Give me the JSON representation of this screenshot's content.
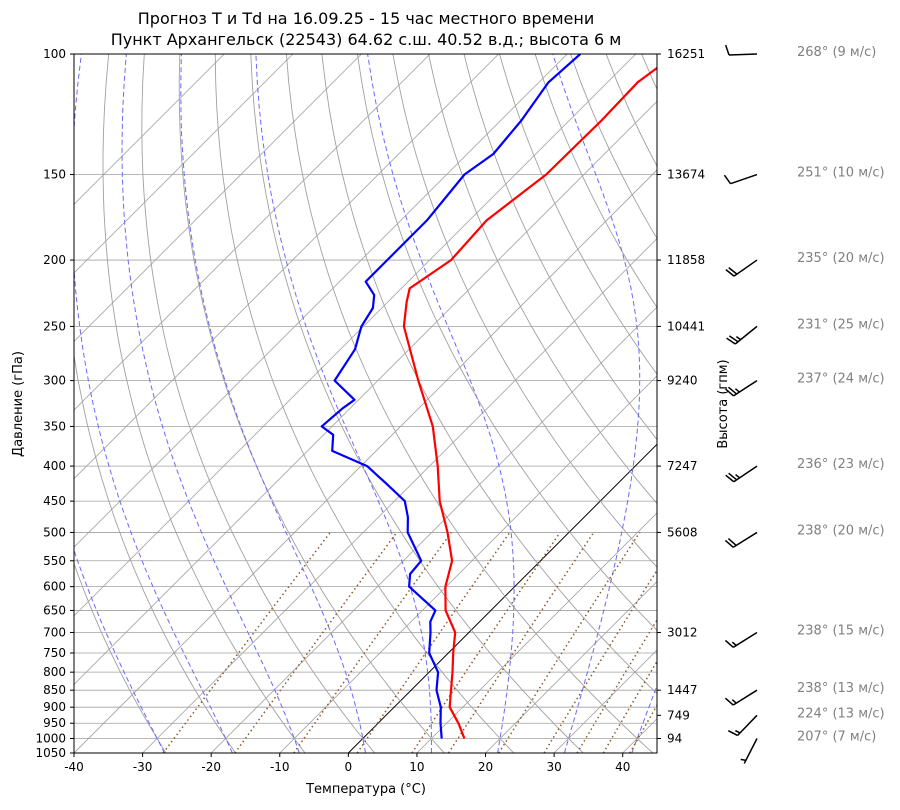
{
  "chart_data": {
    "type": "line",
    "subtype": "skew-t log-p",
    "title": [
      "Прогноз T и Td на 16.09.25 - 15 час местного времени",
      "Пункт Архангельск (22543) 64.62 с.ш. 40.52 в.д.; высота 6 м"
    ],
    "xlabel": "Температура (°C)",
    "ylabel": "Давление (гПа)",
    "ylabel_right": "Высота (гпм)",
    "xlim": [
      -40,
      45
    ],
    "ylim": [
      1050,
      100
    ],
    "x_ticks": [
      -40,
      -30,
      -20,
      -10,
      0,
      10,
      20,
      30,
      40
    ],
    "y_ticks": [
      100,
      150,
      200,
      250,
      300,
      350,
      400,
      450,
      500,
      550,
      600,
      650,
      700,
      750,
      800,
      850,
      900,
      950,
      1000,
      1050
    ],
    "skew_degrees": 45,
    "colors": {
      "temperature": "#ff0000",
      "dewpoint": "#0000ff",
      "isotherm_zero": "#000000",
      "grid": "#a0a0a0",
      "dry_adiabat": "#a0a0a0",
      "moist_adiabat": "#6a6aff",
      "mixing_ratio": "#8b5a2b",
      "wind_label": "#808080"
    },
    "series": [
      {
        "name": "T",
        "color": "#ff0000",
        "p": [
          1000,
          950,
          900,
          850,
          800,
          750,
          700,
          650,
          600,
          550,
          500,
          450,
          400,
          350,
          300,
          250,
          230,
          220,
          200,
          175,
          150,
          125,
          110,
          103
        ],
        "t": [
          14.8,
          11.7,
          8.1,
          5.8,
          3.4,
          0.7,
          -2.0,
          -6.6,
          -10.1,
          -12.9,
          -17.7,
          -23.4,
          -28.8,
          -35.3,
          -44.1,
          -54.1,
          -57.3,
          -58.8,
          -56.9,
          -57.5,
          -55.5,
          -55.3,
          -55.6,
          -54.6
        ]
      },
      {
        "name": "Td",
        "color": "#0000ff",
        "p": [
          1000,
          950,
          900,
          850,
          800,
          750,
          700,
          675,
          650,
          600,
          575,
          550,
          500,
          475,
          450,
          425,
          400,
          380,
          360,
          350,
          330,
          320,
          300,
          270,
          250,
          235,
          225,
          215,
          200,
          175,
          150,
          140,
          125,
          110,
          100
        ],
        "t": [
          11.5,
          9.1,
          6.8,
          3.7,
          1.3,
          -2.8,
          -5.6,
          -7.2,
          -8.1,
          -15.4,
          -17.1,
          -17.4,
          -23.5,
          -25.7,
          -28.5,
          -33.6,
          -39.1,
          -46.4,
          -48.6,
          -51.5,
          -51.1,
          -50.6,
          -56.3,
          -57.9,
          -60.3,
          -61.3,
          -63.0,
          -66.2,
          -66.2,
          -66.2,
          -67.4,
          -66.2,
          -67.0,
          -68.6,
          -68.1
        ]
      }
    ],
    "heights": [
      {
        "p": 100,
        "label": "16251"
      },
      {
        "p": 150,
        "label": "13674"
      },
      {
        "p": 200,
        "label": "11858"
      },
      {
        "p": 250,
        "label": "10441"
      },
      {
        "p": 300,
        "label": "9240"
      },
      {
        "p": 400,
        "label": "7247"
      },
      {
        "p": 500,
        "label": "5608"
      },
      {
        "p": 700,
        "label": "3012"
      },
      {
        "p": 850,
        "label": "1447"
      },
      {
        "p": 925,
        "label": "749"
      },
      {
        "p": 1000,
        "label": "94"
      }
    ],
    "winds": [
      {
        "p": 100,
        "dir": 268,
        "speed": 9,
        "label": "268° (9 м/с)"
      },
      {
        "p": 150,
        "dir": 251,
        "speed": 10,
        "label": "251° (10 м/с)"
      },
      {
        "p": 200,
        "dir": 235,
        "speed": 20,
        "label": "235° (20 м/с)"
      },
      {
        "p": 250,
        "dir": 231,
        "speed": 25,
        "label": "231° (25 м/с)"
      },
      {
        "p": 300,
        "dir": 237,
        "speed": 24,
        "label": "237° (24 м/с)"
      },
      {
        "p": 400,
        "dir": 236,
        "speed": 23,
        "label": "236° (23 м/с)"
      },
      {
        "p": 500,
        "dir": 238,
        "speed": 20,
        "label": "238° (20 м/с)"
      },
      {
        "p": 700,
        "dir": 238,
        "speed": 15,
        "label": "238° (15 м/с)"
      },
      {
        "p": 850,
        "dir": 238,
        "speed": 13,
        "label": "238° (13 м/с)"
      },
      {
        "p": 925,
        "dir": 224,
        "speed": 13,
        "label": "224° (13 м/с)"
      },
      {
        "p": 1000,
        "dir": 207,
        "speed": 7,
        "label": "207° (7 м/с)"
      }
    ]
  }
}
